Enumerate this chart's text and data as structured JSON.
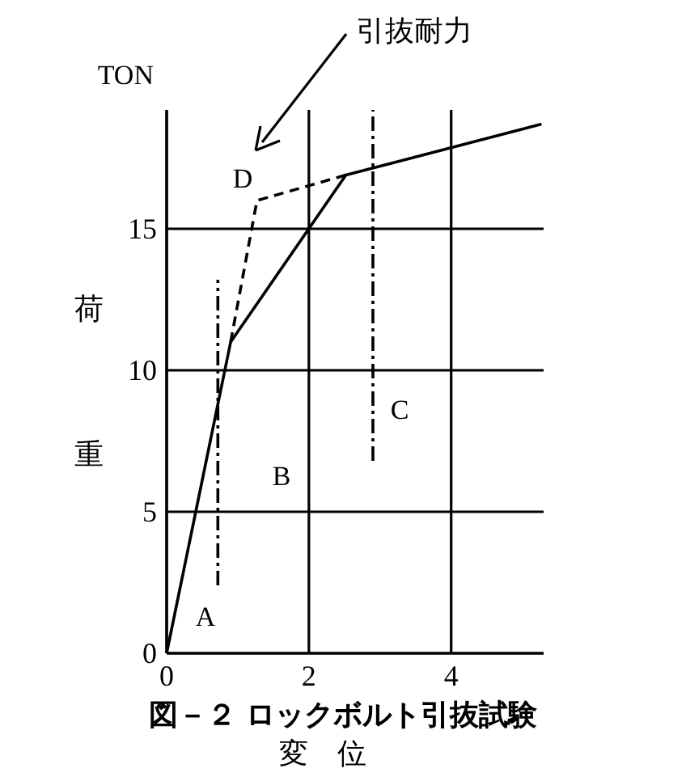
{
  "chart_data": {
    "type": "line",
    "xlabel": "変 位",
    "ylabel": "荷 重",
    "x": [
      0,
      0.9,
      2.52,
      5.27
    ],
    "series": [
      {
        "color": "#000000",
        "values": [
          0,
          11,
          16.9,
          18.7
        ],
        "line_style": "solid"
      },
      {
        "color": "#000000",
        "x": [
          0.9,
          1.27,
          2.52
        ],
        "values": [
          11,
          16,
          16.9
        ],
        "line_style": "dashed"
      },
      {
        "color": "#000000",
        "x": [
          0.72,
          0.72
        ],
        "values": [
          2.4,
          13.2
        ],
        "line_style": "dashdot"
      },
      {
        "color": "#000000",
        "x": [
          2.9,
          2.9
        ],
        "values": [
          6.8,
          19.2
        ],
        "line_style": "dashdot"
      }
    ],
    "xlim": [
      0,
      5.3
    ],
    "ylim": [
      0,
      19.2
    ],
    "xticks": [
      0,
      2,
      4
    ],
    "yticks": [
      0,
      5,
      10,
      15
    ],
    "grid": true,
    "marker": "none",
    "annotations": [
      "TON",
      "図－２ ロックボルト引抜試験",
      "A",
      "B",
      "C",
      "D",
      "引抜耐力"
    ]
  }
}
